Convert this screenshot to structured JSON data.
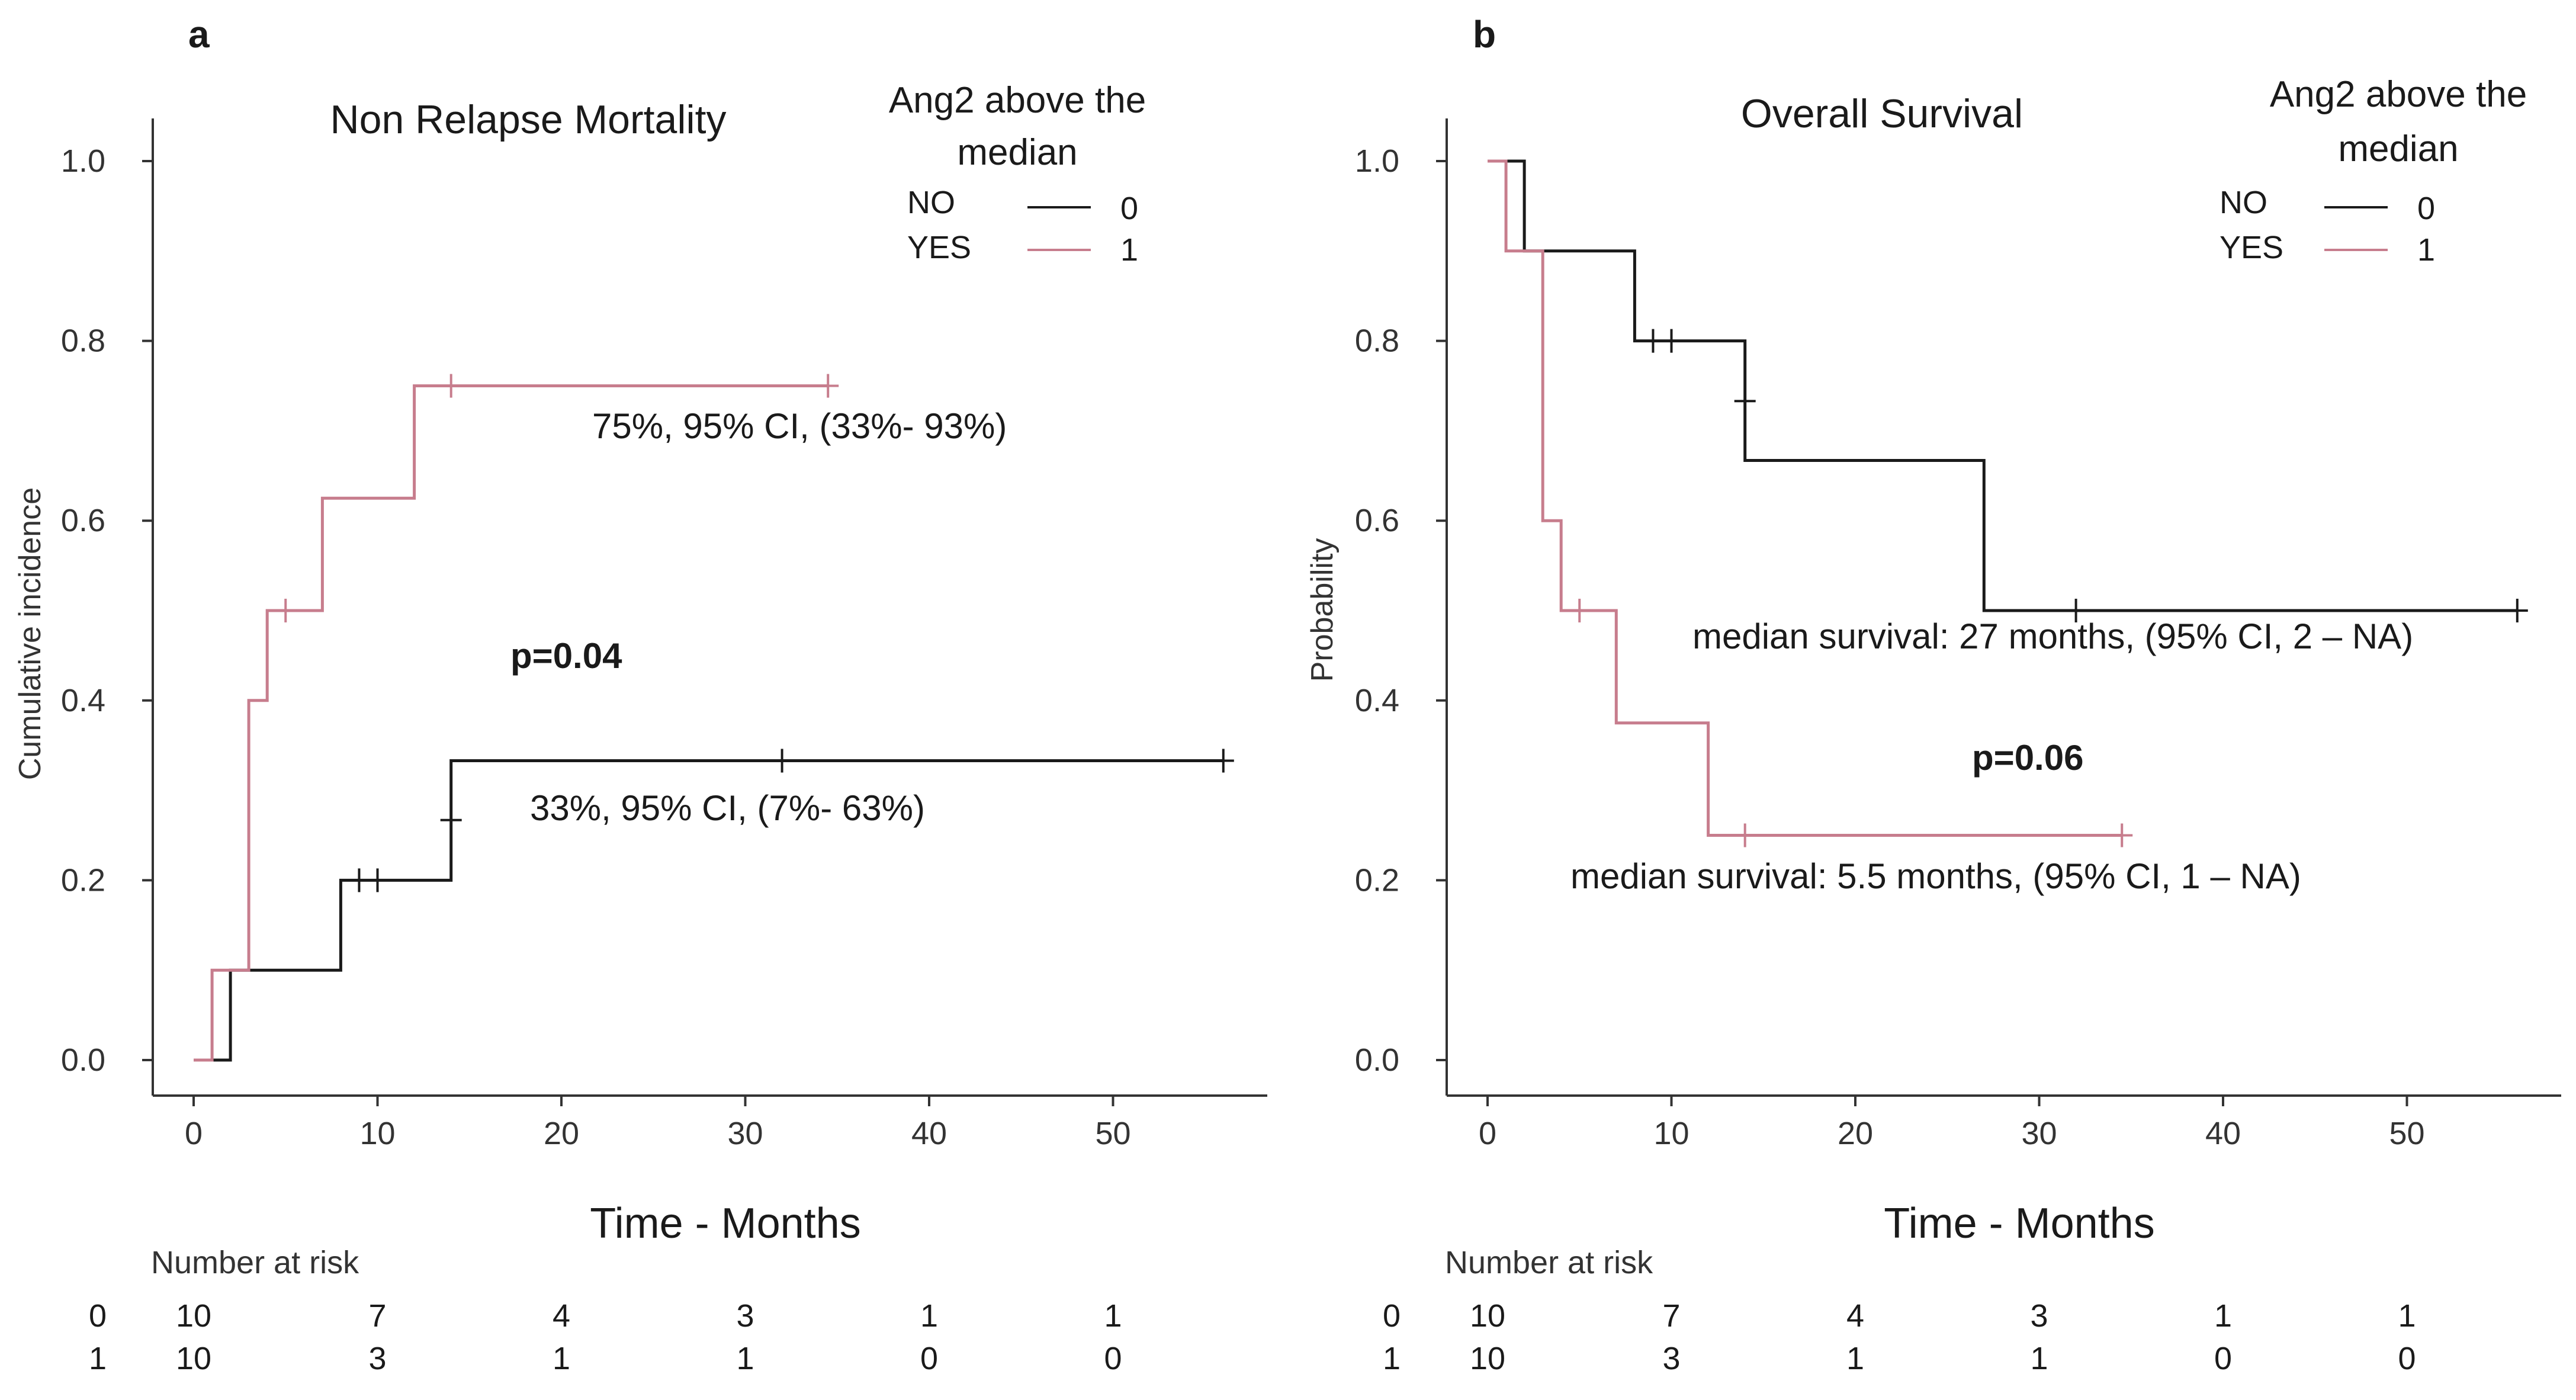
{
  "colors": {
    "group0": "#1a1a1a",
    "group1": "#c77d8d",
    "axis": "#333333"
  },
  "chart_data": [
    {
      "type": "line",
      "panel": "a",
      "title": "Non Relapse Mortality",
      "xlabel": "Time - Months",
      "ylabel": "Cumulative incidence",
      "xlim": [
        0,
        56
      ],
      "ylim": [
        0,
        1.0
      ],
      "xticks": [
        "0",
        "10",
        "20",
        "30",
        "40",
        "50"
      ],
      "yticks": [
        "0.0",
        "0.2",
        "0.4",
        "0.6",
        "0.8",
        "1.0"
      ],
      "legend": {
        "title": "Ang2 above the median",
        "entries": [
          {
            "label": "NO",
            "code": "0"
          },
          {
            "label": "YES",
            "code": "1"
          }
        ]
      },
      "series": [
        {
          "name": "0",
          "steps": [
            [
              0.5,
              0
            ],
            [
              2,
              0
            ],
            [
              2,
              0.1
            ],
            [
              8,
              0.1
            ],
            [
              8,
              0.2
            ],
            [
              14,
              0.2
            ],
            [
              14,
              0.333
            ],
            [
              56,
              0.333
            ]
          ],
          "censor": [
            [
              9,
              0.2
            ],
            [
              10,
              0.2
            ],
            [
              14,
              0.267
            ],
            [
              32,
              0.333
            ],
            [
              56,
              0.333
            ]
          ]
        },
        {
          "name": "1",
          "steps": [
            [
              0,
              0
            ],
            [
              1,
              0
            ],
            [
              1,
              0.1
            ],
            [
              3,
              0.1
            ],
            [
              3,
              0.4
            ],
            [
              4,
              0.4
            ],
            [
              4,
              0.5
            ],
            [
              7,
              0.5
            ],
            [
              7,
              0.625
            ],
            [
              12,
              0.625
            ],
            [
              12,
              0.75
            ],
            [
              34.5,
              0.75
            ]
          ],
          "censor": [
            [
              5,
              0.5
            ],
            [
              14,
              0.75
            ],
            [
              34.5,
              0.75
            ]
          ]
        }
      ],
      "annotations": {
        "upper": "75%,  95% CI, (33%- 93%)",
        "lower": "33%,  95% CI, (7%- 63%)",
        "pvalue": "p=0.04"
      },
      "risk_table": {
        "title": "Number at risk",
        "times": [
          0,
          10,
          20,
          30,
          40,
          50
        ],
        "rows": [
          {
            "group": "0",
            "values": [
              "10",
              "7",
              "4",
              "3",
              "1",
              "1"
            ]
          },
          {
            "group": "1",
            "values": [
              "10",
              "3",
              "1",
              "1",
              "0",
              "0"
            ]
          }
        ]
      }
    },
    {
      "type": "line",
      "panel": "b",
      "title": "Overall Survival",
      "xlabel": "Time - Months",
      "ylabel": "Probability",
      "xlim": [
        0,
        56
      ],
      "ylim": [
        0,
        1.0
      ],
      "xticks": [
        "0",
        "10",
        "20",
        "30",
        "40",
        "50"
      ],
      "yticks": [
        "0.0",
        "0.2",
        "0.4",
        "0.6",
        "0.8",
        "1.0"
      ],
      "legend": {
        "title": "Ang2 above the median",
        "entries": [
          {
            "label": "NO",
            "code": "0"
          },
          {
            "label": "YES",
            "code": "1"
          }
        ]
      },
      "series": [
        {
          "name": "0",
          "steps": [
            [
              0.5,
              1.0
            ],
            [
              2,
              1.0
            ],
            [
              2,
              0.9
            ],
            [
              8,
              0.9
            ],
            [
              8,
              0.8
            ],
            [
              14,
              0.8
            ],
            [
              14,
              0.667
            ],
            [
              27,
              0.667
            ],
            [
              27,
              0.5
            ],
            [
              56,
              0.5
            ]
          ],
          "censor": [
            [
              9,
              0.8
            ],
            [
              10,
              0.8
            ],
            [
              14,
              0.733
            ],
            [
              32,
              0.5
            ],
            [
              56,
              0.5
            ]
          ]
        },
        {
          "name": "1",
          "steps": [
            [
              0,
              1.0
            ],
            [
              1,
              1.0
            ],
            [
              1,
              0.9
            ],
            [
              3,
              0.9
            ],
            [
              3,
              0.6
            ],
            [
              4,
              0.6
            ],
            [
              4,
              0.5
            ],
            [
              7,
              0.5
            ],
            [
              7,
              0.375
            ],
            [
              12,
              0.375
            ],
            [
              12,
              0.25
            ],
            [
              34.5,
              0.25
            ]
          ],
          "censor": [
            [
              5,
              0.5
            ],
            [
              14,
              0.25
            ],
            [
              34.5,
              0.25
            ]
          ]
        }
      ],
      "annotations": {
        "upper": "median survival: 27 months, (95% CI, 2 – NA)",
        "lower": "median survival: 5.5 months, (95% CI, 1 – NA)",
        "pvalue": "p=0.06"
      },
      "risk_table": {
        "title": "Number at risk",
        "times": [
          0,
          10,
          20,
          30,
          40,
          50
        ],
        "rows": [
          {
            "group": "0",
            "values": [
              "10",
              "7",
              "4",
              "3",
              "1",
              "1"
            ]
          },
          {
            "group": "1",
            "values": [
              "10",
              "3",
              "1",
              "1",
              "0",
              "0"
            ]
          }
        ]
      }
    }
  ]
}
